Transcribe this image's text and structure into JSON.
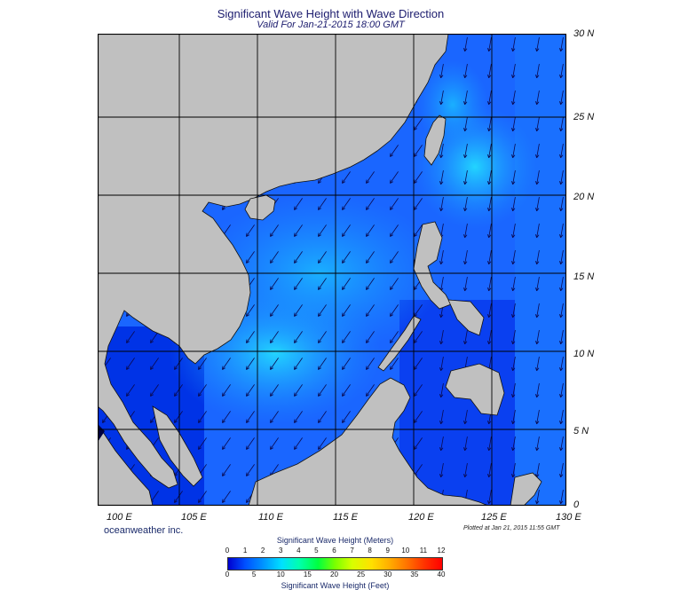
{
  "title": "Significant Wave Height with Wave Direction",
  "subtitle": "Valid For Jan-21-2015 18:00 GMT",
  "brand": "oceanweather inc.",
  "plotted": "Plotted at Jan 21, 2015 11:55 GMT",
  "lon_labels": [
    "100 E",
    "105 E",
    "110 E",
    "115 E",
    "120 E",
    "125 E",
    "130 E"
  ],
  "lat_labels": [
    "30 N",
    "25 N",
    "20 N",
    "15 N",
    "10 N",
    "5 N",
    "0"
  ],
  "colorbar": {
    "title_meters": "Significant Wave Height (Meters)",
    "title_feet": "Significant Wave Height (Feet)",
    "meters": [
      "0",
      "1",
      "2",
      "3",
      "4",
      "5",
      "6",
      "7",
      "8",
      "9",
      "10",
      "11",
      "12"
    ],
    "feet": [
      "0",
      "5",
      "10",
      "15",
      "20",
      "25",
      "30",
      "35",
      "40"
    ]
  },
  "colors": {
    "land": "#c0c0c0",
    "sea_deep": "#0033ff",
    "sea_mid": "#1a8cff",
    "sea_high": "#22ccff",
    "grid": "#000000"
  },
  "map_extent": {
    "lon": [
      99,
      130
    ],
    "lat": [
      0,
      30
    ]
  }
}
